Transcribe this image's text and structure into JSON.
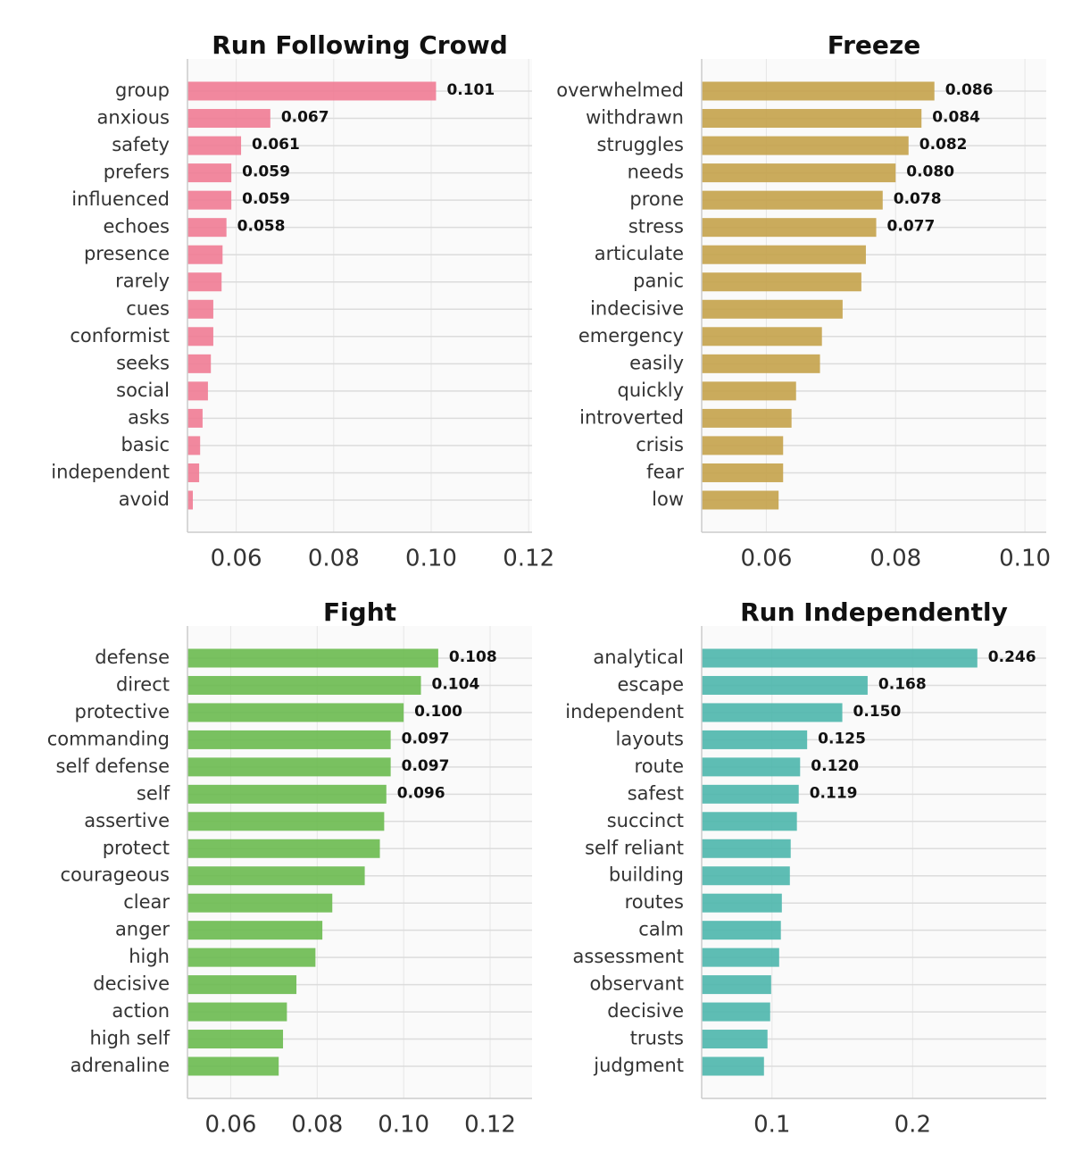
{
  "chart_data": [
    {
      "type": "bar",
      "orientation": "horizontal",
      "title": "Run Following Crowd",
      "color": "#f07b93",
      "categories": [
        "group",
        "anxious",
        "safety",
        "prefers",
        "influenced",
        "echoes",
        "presence",
        "rarely",
        "cues",
        "conformist",
        "seeks",
        "social",
        "asks",
        "basic",
        "independent",
        "avoid"
      ],
      "values": [
        0.101,
        0.067,
        0.061,
        0.059,
        0.059,
        0.058,
        0.0572,
        0.057,
        0.0553,
        0.0553,
        0.0548,
        0.0542,
        0.0531,
        0.0526,
        0.0524,
        0.0511
      ],
      "value_labels": [
        "0.101",
        "0.067",
        "0.061",
        "0.059",
        "0.059",
        "0.058",
        null,
        null,
        null,
        null,
        null,
        null,
        null,
        null,
        null,
        null
      ],
      "xlim": [
        0.05,
        0.1207
      ],
      "xticks": [
        0.06,
        0.08,
        {
          "value": 0.1,
          "label": "0.10"
        },
        0.12
      ],
      "grid": true
    },
    {
      "type": "bar",
      "orientation": "horizontal",
      "title": "Freeze",
      "color": "#c4a24a",
      "categories": [
        "overwhelmed",
        "withdrawn",
        "struggles",
        "needs",
        "prone",
        "stress",
        "articulate",
        "panic",
        "indecisive",
        "emergency",
        "easily",
        "quickly",
        "introverted",
        "crisis",
        "fear",
        "low"
      ],
      "values": [
        0.086,
        0.084,
        0.082,
        0.08,
        0.078,
        0.077,
        0.0754,
        0.0747,
        0.0718,
        0.0686,
        0.0683,
        0.0646,
        0.0639,
        0.0626,
        0.0626,
        0.0619
      ],
      "value_labels": [
        "0.086",
        "0.084",
        "0.082",
        "0.080",
        "0.078",
        "0.077",
        null,
        null,
        null,
        null,
        null,
        null,
        null,
        null,
        null,
        null
      ],
      "xlim": [
        0.05,
        0.1033
      ],
      "xticks": [
        0.06,
        0.08,
        {
          "value": 0.1,
          "label": "0.10"
        }
      ],
      "grid": true
    },
    {
      "type": "bar",
      "orientation": "horizontal",
      "title": "Fight",
      "color": "#6aba4f",
      "categories": [
        "defense",
        "direct",
        "protective",
        "commanding",
        "self defense",
        "self",
        "assertive",
        "protect",
        "courageous",
        "clear",
        "anger",
        "high",
        "decisive",
        "action",
        "high self",
        "adrenaline"
      ],
      "values": [
        0.108,
        0.104,
        0.1,
        0.097,
        0.097,
        0.096,
        0.0955,
        0.0945,
        0.091,
        0.0835,
        0.0812,
        0.0796,
        0.0752,
        0.073,
        0.0721,
        0.0711
      ],
      "value_labels": [
        "0.108",
        "0.104",
        "0.100",
        "0.097",
        "0.097",
        "0.096",
        null,
        null,
        null,
        null,
        null,
        null,
        null,
        null,
        null,
        null
      ],
      "xlim": [
        0.05,
        0.1297
      ],
      "xticks": [
        0.06,
        0.08,
        {
          "value": 0.1,
          "label": "0.10"
        },
        0.12
      ],
      "grid": true
    },
    {
      "type": "bar",
      "orientation": "horizontal",
      "title": "Run Independently",
      "color": "#4db6ac",
      "categories": [
        "analytical",
        "escape",
        "independent",
        "layouts",
        "route",
        "safest",
        "succinct",
        "self reliant",
        "building",
        "routes",
        "calm",
        "assessment",
        "observant",
        "decisive",
        "trusts",
        "judgment"
      ],
      "values": [
        0.246,
        0.168,
        0.15,
        0.125,
        0.12,
        0.119,
        0.1177,
        0.1133,
        0.1127,
        0.107,
        0.1063,
        0.1051,
        0.0994,
        0.0987,
        0.0968,
        0.0943
      ],
      "value_labels": [
        "0.246",
        "0.168",
        "0.150",
        "0.125",
        "0.120",
        "0.119",
        null,
        null,
        null,
        null,
        null,
        null,
        null,
        null,
        null,
        null
      ],
      "xlim": [
        0.05,
        0.295
      ],
      "xticks": [
        0.1,
        0.2
      ],
      "grid": true
    }
  ]
}
